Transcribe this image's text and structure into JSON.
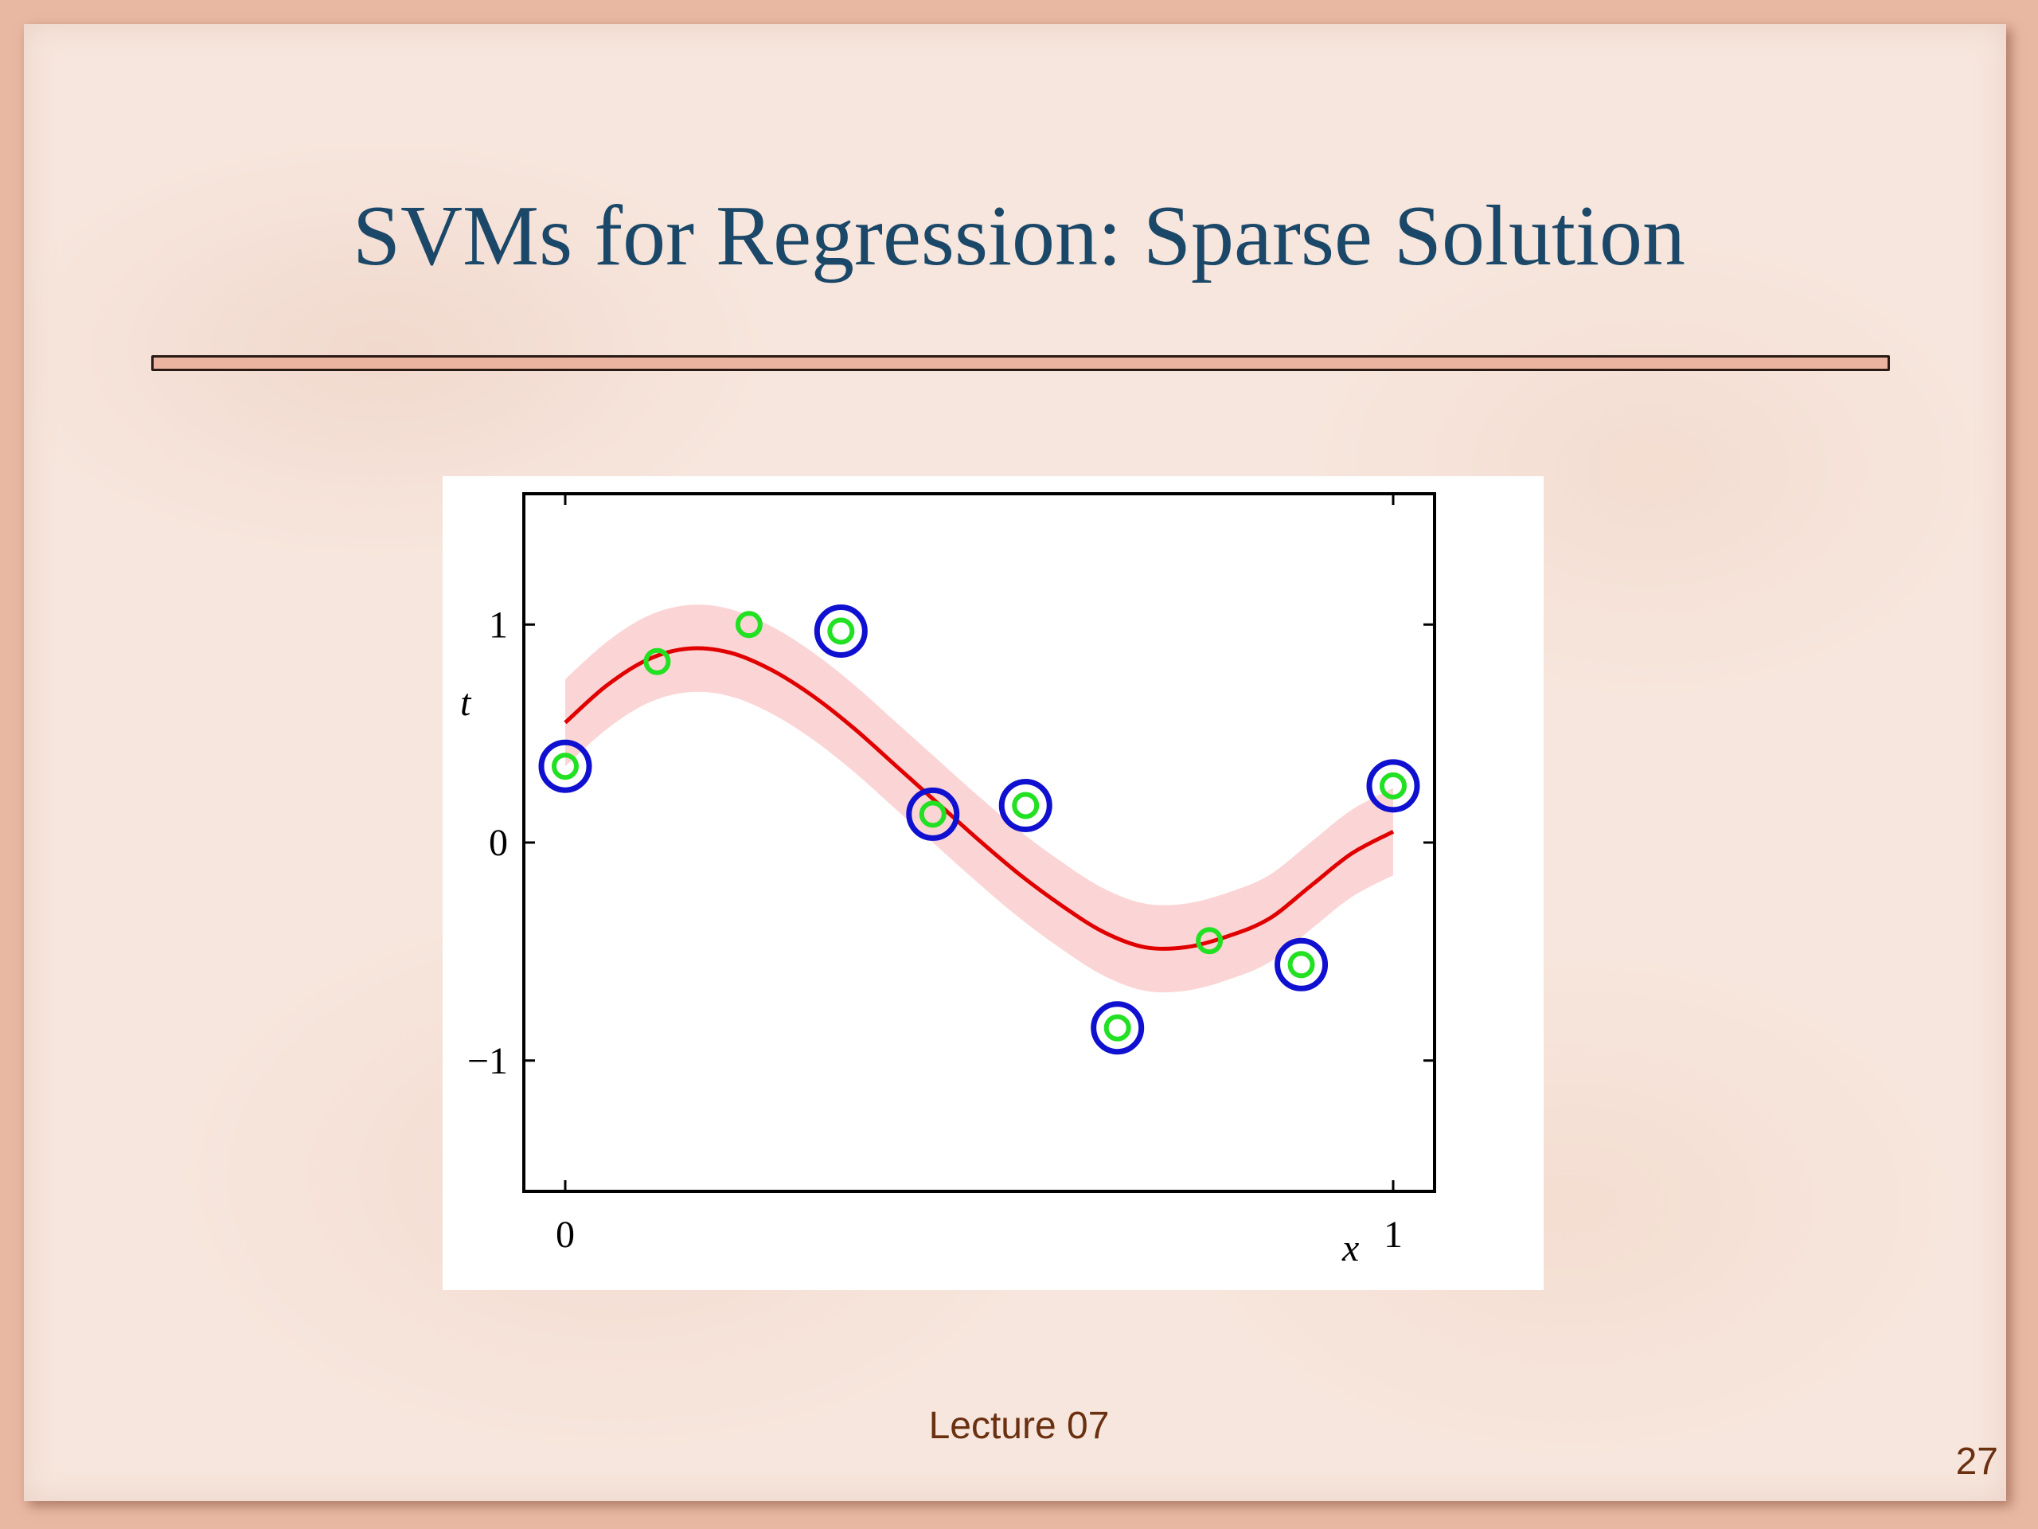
{
  "slide": {
    "title": "SVMs for Regression: Sparse Solution",
    "footer": "Lecture 07",
    "page_number": "27"
  },
  "colors": {
    "title": "#1b4868",
    "curve": "#e00000",
    "tube": "#fbd5d5",
    "support_ring": "#1010d0",
    "point": "#22e022",
    "footer_text": "#6a3010"
  },
  "chart_data": {
    "type": "scatter",
    "title": "",
    "xlabel": "x",
    "ylabel": "t",
    "xlim": [
      -0.05,
      1.05
    ],
    "ylim": [
      -1.6,
      1.6
    ],
    "xticks": [
      {
        "value": 0,
        "label": "0"
      },
      {
        "value": 1,
        "label": "1"
      }
    ],
    "yticks": [
      {
        "value": 1,
        "label": "1"
      },
      {
        "value": 0,
        "label": "0"
      },
      {
        "value": -1,
        "label": "−1"
      }
    ],
    "grid": false,
    "tube_half_width": 0.2,
    "curve": {
      "x": [
        0,
        0.05,
        0.1,
        0.15,
        0.2,
        0.25,
        0.3,
        0.35,
        0.4,
        0.45,
        0.5,
        0.55,
        0.6,
        0.65,
        0.7,
        0.75,
        0.8,
        0.85,
        0.9,
        0.95,
        1.0
      ],
      "y": [
        0.55,
        0.72,
        0.84,
        0.89,
        0.87,
        0.79,
        0.67,
        0.52,
        0.35,
        0.18,
        0.01,
        -0.15,
        -0.29,
        -0.41,
        -0.48,
        -0.48,
        -0.43,
        -0.35,
        -0.2,
        -0.05,
        0.05
      ]
    },
    "points": [
      {
        "x": 0.0,
        "y": 0.35,
        "support_vector": true
      },
      {
        "x": 0.111,
        "y": 0.83,
        "support_vector": false
      },
      {
        "x": 0.222,
        "y": 1.0,
        "support_vector": false
      },
      {
        "x": 0.333,
        "y": 0.97,
        "support_vector": true
      },
      {
        "x": 0.444,
        "y": 0.13,
        "support_vector": true
      },
      {
        "x": 0.556,
        "y": 0.17,
        "support_vector": true
      },
      {
        "x": 0.667,
        "y": -0.85,
        "support_vector": true
      },
      {
        "x": 0.778,
        "y": -0.45,
        "support_vector": false
      },
      {
        "x": 0.889,
        "y": -0.56,
        "support_vector": true
      },
      {
        "x": 1.0,
        "y": 0.26,
        "support_vector": true
      }
    ]
  }
}
